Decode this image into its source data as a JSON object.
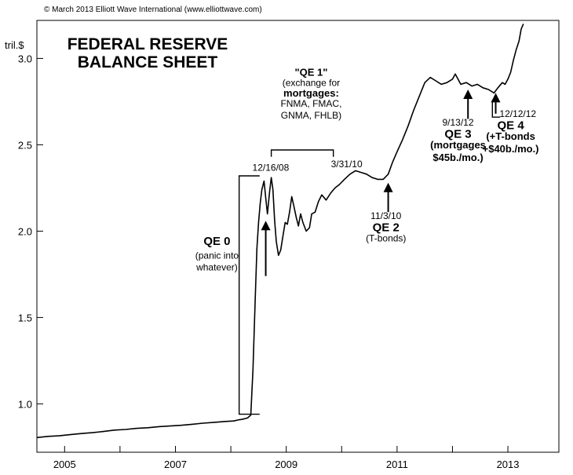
{
  "chart_data": {
    "type": "line",
    "copyright": "© March 2013 Elliott Wave International (www.elliottwave.com)",
    "title_lines": [
      "FEDERAL RESERVE",
      "BALANCE SHEET"
    ],
    "ylabel": "tril.$",
    "ylim": [
      0.72,
      3.22
    ],
    "yticks": [
      1.0,
      1.5,
      2.0,
      2.5,
      3.0
    ],
    "ytick_labels": [
      "1.0",
      "1.5",
      "2.0",
      "2.5",
      "3.0"
    ],
    "xlim": [
      2004.5,
      2013.92
    ],
    "xticks_minor": [
      2005,
      2006,
      2007,
      2008,
      2009,
      2010,
      2011,
      2012,
      2013
    ],
    "xtick_labels": [
      {
        "x": 2005,
        "label": "2005"
      },
      {
        "x": 2007,
        "label": "2007"
      },
      {
        "x": 2009,
        "label": "2009"
      },
      {
        "x": 2011,
        "label": "2011"
      },
      {
        "x": 2013,
        "label": "2013"
      }
    ],
    "grid": false,
    "series": [
      {
        "color": "#000000",
        "points": [
          [
            2004.5,
            0.805
          ],
          [
            2004.7,
            0.812
          ],
          [
            2004.9,
            0.815
          ],
          [
            2005.1,
            0.822
          ],
          [
            2005.3,
            0.828
          ],
          [
            2005.5,
            0.833
          ],
          [
            2005.7,
            0.84
          ],
          [
            2005.9,
            0.848
          ],
          [
            2006.1,
            0.852
          ],
          [
            2006.3,
            0.858
          ],
          [
            2006.5,
            0.862
          ],
          [
            2006.7,
            0.868
          ],
          [
            2006.9,
            0.872
          ],
          [
            2007.1,
            0.876
          ],
          [
            2007.3,
            0.882
          ],
          [
            2007.5,
            0.888
          ],
          [
            2007.7,
            0.893
          ],
          [
            2007.9,
            0.898
          ],
          [
            2008.05,
            0.901
          ],
          [
            2008.15,
            0.908
          ],
          [
            2008.2,
            0.91
          ],
          [
            2008.3,
            0.918
          ],
          [
            2008.36,
            0.935
          ],
          [
            2008.4,
            1.2
          ],
          [
            2008.44,
            1.6
          ],
          [
            2008.47,
            1.9
          ],
          [
            2008.5,
            2.05
          ],
          [
            2008.53,
            2.16
          ],
          [
            2008.56,
            2.24
          ],
          [
            2008.6,
            2.29
          ],
          [
            2008.63,
            2.19
          ],
          [
            2008.66,
            2.1
          ],
          [
            2008.7,
            2.23
          ],
          [
            2008.73,
            2.31
          ],
          [
            2008.76,
            2.24
          ],
          [
            2008.79,
            2.06
          ],
          [
            2008.82,
            1.94
          ],
          [
            2008.86,
            1.86
          ],
          [
            2008.9,
            1.89
          ],
          [
            2008.94,
            1.97
          ],
          [
            2008.98,
            2.05
          ],
          [
            2009.02,
            2.04
          ],
          [
            2009.06,
            2.11
          ],
          [
            2009.1,
            2.2
          ],
          [
            2009.14,
            2.14
          ],
          [
            2009.18,
            2.08
          ],
          [
            2009.22,
            2.03
          ],
          [
            2009.26,
            2.1
          ],
          [
            2009.3,
            2.05
          ],
          [
            2009.36,
            2.0
          ],
          [
            2009.42,
            2.02
          ],
          [
            2009.46,
            2.1
          ],
          [
            2009.52,
            2.11
          ],
          [
            2009.58,
            2.17
          ],
          [
            2009.64,
            2.21
          ],
          [
            2009.72,
            2.18
          ],
          [
            2009.8,
            2.22
          ],
          [
            2009.88,
            2.25
          ],
          [
            2009.96,
            2.27
          ],
          [
            2010.05,
            2.3
          ],
          [
            2010.15,
            2.33
          ],
          [
            2010.25,
            2.35
          ],
          [
            2010.35,
            2.34
          ],
          [
            2010.45,
            2.33
          ],
          [
            2010.55,
            2.31
          ],
          [
            2010.65,
            2.3
          ],
          [
            2010.75,
            2.3
          ],
          [
            2010.84,
            2.33
          ],
          [
            2010.92,
            2.4
          ],
          [
            2011.0,
            2.46
          ],
          [
            2011.1,
            2.53
          ],
          [
            2011.2,
            2.61
          ],
          [
            2011.3,
            2.7
          ],
          [
            2011.4,
            2.78
          ],
          [
            2011.5,
            2.86
          ],
          [
            2011.6,
            2.89
          ],
          [
            2011.7,
            2.87
          ],
          [
            2011.8,
            2.85
          ],
          [
            2011.9,
            2.86
          ],
          [
            2012.0,
            2.88
          ],
          [
            2012.05,
            2.91
          ],
          [
            2012.1,
            2.88
          ],
          [
            2012.15,
            2.85
          ],
          [
            2012.25,
            2.86
          ],
          [
            2012.35,
            2.84
          ],
          [
            2012.45,
            2.85
          ],
          [
            2012.55,
            2.83
          ],
          [
            2012.65,
            2.82
          ],
          [
            2012.75,
            2.8
          ],
          [
            2012.82,
            2.83
          ],
          [
            2012.9,
            2.86
          ],
          [
            2012.95,
            2.85
          ],
          [
            2013.0,
            2.88
          ],
          [
            2013.05,
            2.92
          ],
          [
            2013.1,
            2.99
          ],
          [
            2013.15,
            3.05
          ],
          [
            2013.2,
            3.1
          ],
          [
            2013.24,
            3.17
          ],
          [
            2013.28,
            3.2
          ]
        ]
      }
    ],
    "annotations": [
      {
        "name": "qe0-label",
        "lines": [
          "QE 0"
        ],
        "style": "ann-big",
        "x": 2007.75,
        "y": 1.92
      },
      {
        "name": "qe0-desc",
        "lines": [
          "(panic into",
          "whatever)"
        ],
        "style": "ann",
        "x": 2007.75,
        "y": 1.84
      },
      {
        "name": "date-12-16-08",
        "lines": [
          "12/16/08"
        ],
        "style": "ann",
        "x": 2008.72,
        "y": 2.35
      },
      {
        "name": "qe1-label",
        "lines": [
          "\"QE 1\""
        ],
        "style": "ann-bold",
        "x": 2009.45,
        "y": 2.9
      },
      {
        "name": "qe1-desc",
        "lines": [
          "(exchange for"
        ],
        "style": "ann",
        "x": 2009.45,
        "y": 2.84
      },
      {
        "name": "qe1-mortgages",
        "lines": [
          "mortgages:"
        ],
        "style": "ann-bold",
        "x": 2009.45,
        "y": 2.78
      },
      {
        "name": "qe1-list",
        "lines": [
          "FNMA, FMAC,",
          "GNMA, FHLB)"
        ],
        "style": "ann",
        "x": 2009.45,
        "y": 2.72
      },
      {
        "name": "date-3-31-10",
        "lines": [
          "3/31/10"
        ],
        "style": "ann",
        "x": 2010.09,
        "y": 2.37
      },
      {
        "name": "date-11-3-10",
        "lines": [
          "11/3/10"
        ],
        "style": "ann",
        "x": 2010.8,
        "y": 2.07
      },
      {
        "name": "qe2-label",
        "lines": [
          "QE 2"
        ],
        "style": "ann-big",
        "x": 2010.8,
        "y": 2.0
      },
      {
        "name": "qe2-desc",
        "lines": [
          "(T-bonds)"
        ],
        "style": "ann",
        "x": 2010.8,
        "y": 1.94
      },
      {
        "name": "date-9-13-12",
        "lines": [
          "9/13/12"
        ],
        "style": "ann",
        "x": 2012.1,
        "y": 2.61
      },
      {
        "name": "qe3-label",
        "lines": [
          "QE 3"
        ],
        "style": "ann-big",
        "x": 2012.1,
        "y": 2.54
      },
      {
        "name": "qe3-desc",
        "lines": [
          "(mortgages",
          "$45b./mo.)"
        ],
        "style": "ann-bold",
        "x": 2012.1,
        "y": 2.48
      },
      {
        "name": "date-12-12-12",
        "lines": [
          "12/12/12"
        ],
        "style": "ann",
        "x": 2013.18,
        "y": 2.66
      },
      {
        "name": "qe4-label",
        "lines": [
          "QE 4"
        ],
        "style": "ann-big",
        "x": 2013.05,
        "y": 2.59
      },
      {
        "name": "qe4-desc",
        "lines": [
          "(+T-bonds",
          "+$40b./mo.)"
        ],
        "style": "ann-bold",
        "x": 2013.05,
        "y": 2.53
      }
    ],
    "arrows": [
      {
        "name": "arrow-qe1-start",
        "x": 2008.63,
        "y_from": 1.74,
        "y_to": 2.06
      },
      {
        "name": "arrow-qe2-start",
        "x": 2010.84,
        "y_from": 2.11,
        "y_to": 2.28
      },
      {
        "name": "arrow-qe3-start",
        "x": 2012.28,
        "y_from": 2.65,
        "y_to": 2.82
      },
      {
        "name": "arrow-qe4-start",
        "x": 2012.78,
        "y_from": 2.68,
        "y_to": 2.8
      }
    ],
    "brackets": [
      {
        "name": "bracket-qe0",
        "x_left": 2008.15,
        "x_right": 2008.52,
        "y_bottom": 0.94,
        "y_top": 2.32
      },
      {
        "name": "bracket-qe1",
        "x_left": 2008.73,
        "x_right": 2009.85,
        "y_top": 2.47,
        "y_bottom": 2.43
      }
    ],
    "leaders": [
      {
        "name": "leader-12-12-12",
        "x": 2012.72,
        "y_top": 2.76,
        "y_bottom": 2.66,
        "x_end": 2012.86
      }
    ]
  }
}
